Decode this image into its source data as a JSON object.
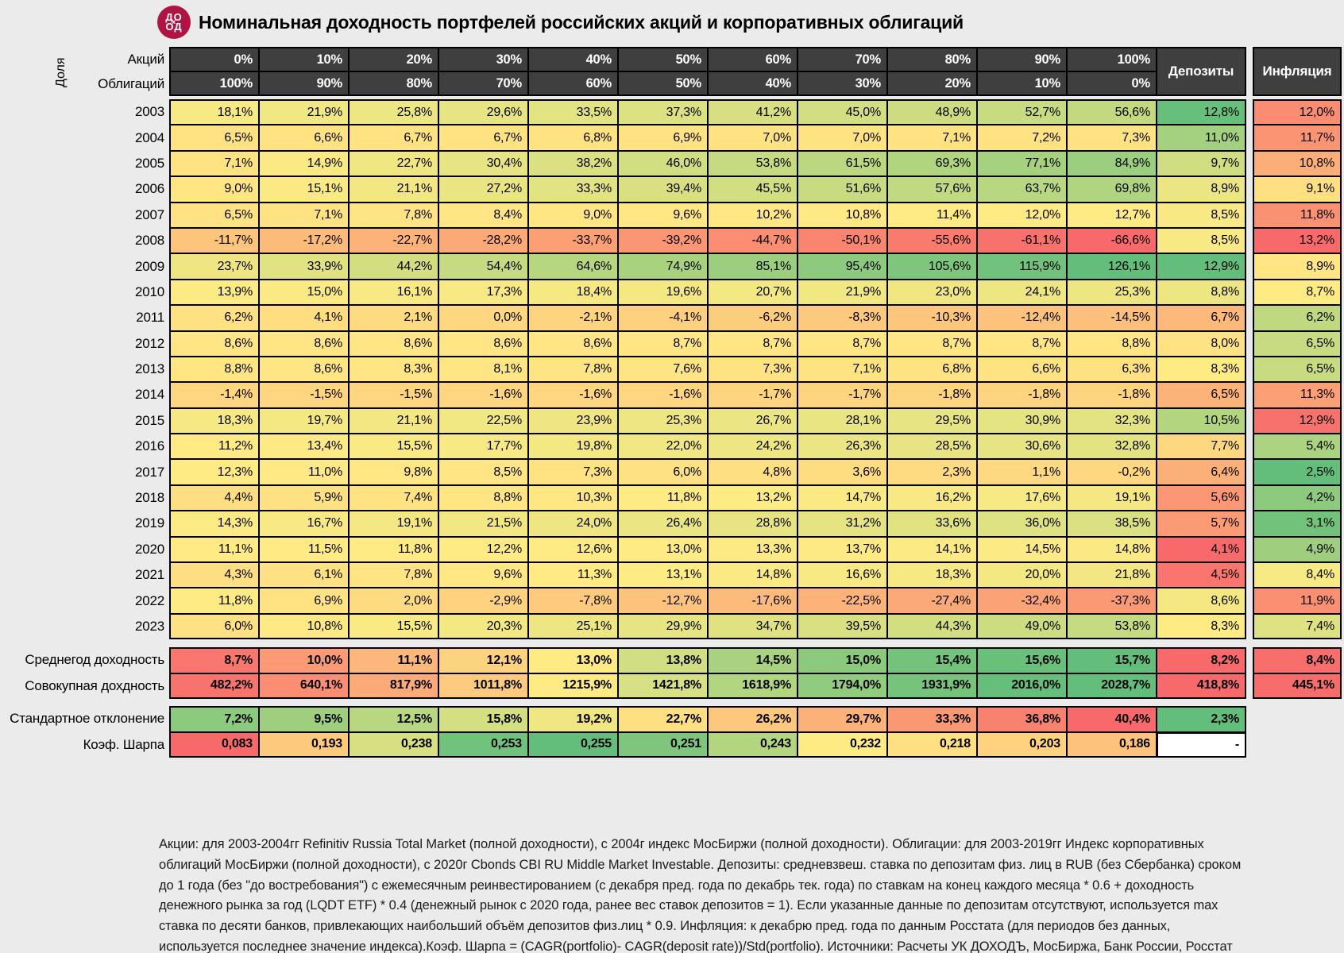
{
  "title": "Номинальная доходность портфелей российских акций и корпоративных облигаций",
  "logo": {
    "top": "ДО",
    "bottom": "ОД",
    "mid": "х"
  },
  "labels": {
    "share": "Доля",
    "stocks": "Акций",
    "bonds": "Облигаций",
    "deposits": "Депозиты",
    "inflation": "Инфляция"
  },
  "colors": {
    "scale_min_red": "#F8696B",
    "scale_mid_yellow": "#FFEB84",
    "scale_max_green": "#63BE7B",
    "header_bg": "#3F3F3F",
    "logo_bg": "#B01442",
    "page_bg": "#EBEBEB"
  },
  "chart_data": {
    "type": "heatmap",
    "title": "Номинальная доходность портфелей российских акций и корпоративных облигаций",
    "stock_weights": [
      0,
      10,
      20,
      30,
      40,
      50,
      60,
      70,
      80,
      90,
      100
    ],
    "bond_weights": [
      100,
      90,
      80,
      70,
      60,
      50,
      40,
      30,
      20,
      10,
      0
    ],
    "rows": [
      {
        "year": 2003,
        "values": [
          18.1,
          21.9,
          25.8,
          29.6,
          33.5,
          37.3,
          41.2,
          45.0,
          48.9,
          52.7,
          56.6
        ],
        "deposit": 12.8,
        "inflation": 12.0
      },
      {
        "year": 2004,
        "values": [
          6.5,
          6.6,
          6.7,
          6.7,
          6.8,
          6.9,
          7.0,
          7.0,
          7.1,
          7.2,
          7.3
        ],
        "deposit": 11.0,
        "inflation": 11.7
      },
      {
        "year": 2005,
        "values": [
          7.1,
          14.9,
          22.7,
          30.4,
          38.2,
          46.0,
          53.8,
          61.5,
          69.3,
          77.1,
          84.9
        ],
        "deposit": 9.7,
        "inflation": 10.8
      },
      {
        "year": 2006,
        "values": [
          9.0,
          15.1,
          21.1,
          27.2,
          33.3,
          39.4,
          45.5,
          51.6,
          57.6,
          63.7,
          69.8
        ],
        "deposit": 8.9,
        "inflation": 9.1
      },
      {
        "year": 2007,
        "values": [
          6.5,
          7.1,
          7.8,
          8.4,
          9.0,
          9.6,
          10.2,
          10.8,
          11.4,
          12.0,
          12.7
        ],
        "deposit": 8.5,
        "inflation": 11.8
      },
      {
        "year": 2008,
        "values": [
          -11.7,
          -17.2,
          -22.7,
          -28.2,
          -33.7,
          -39.2,
          -44.7,
          -50.1,
          -55.6,
          -61.1,
          -66.6
        ],
        "deposit": 8.5,
        "inflation": 13.2
      },
      {
        "year": 2009,
        "values": [
          23.7,
          33.9,
          44.2,
          54.4,
          64.6,
          74.9,
          85.1,
          95.4,
          105.6,
          115.9,
          126.1
        ],
        "deposit": 12.9,
        "inflation": 8.9
      },
      {
        "year": 2010,
        "values": [
          13.9,
          15.0,
          16.1,
          17.3,
          18.4,
          19.6,
          20.7,
          21.9,
          23.0,
          24.1,
          25.3
        ],
        "deposit": 8.8,
        "inflation": 8.7
      },
      {
        "year": 2011,
        "values": [
          6.2,
          4.1,
          2.1,
          0.0,
          -2.1,
          -4.1,
          -6.2,
          -8.3,
          -10.3,
          -12.4,
          -14.5
        ],
        "deposit": 6.7,
        "inflation": 6.2
      },
      {
        "year": 2012,
        "values": [
          8.6,
          8.6,
          8.6,
          8.6,
          8.6,
          8.7,
          8.7,
          8.7,
          8.7,
          8.7,
          8.8
        ],
        "deposit": 8.0,
        "inflation": 6.5
      },
      {
        "year": 2013,
        "values": [
          8.8,
          8.6,
          8.3,
          8.1,
          7.8,
          7.6,
          7.3,
          7.1,
          6.8,
          6.6,
          6.3
        ],
        "deposit": 8.3,
        "inflation": 6.5
      },
      {
        "year": 2014,
        "values": [
          -1.4,
          -1.5,
          -1.5,
          -1.6,
          -1.6,
          -1.6,
          -1.7,
          -1.7,
          -1.8,
          -1.8,
          -1.8
        ],
        "deposit": 6.5,
        "inflation": 11.3
      },
      {
        "year": 2015,
        "values": [
          18.3,
          19.7,
          21.1,
          22.5,
          23.9,
          25.3,
          26.7,
          28.1,
          29.5,
          30.9,
          32.3
        ],
        "deposit": 10.5,
        "inflation": 12.9
      },
      {
        "year": 2016,
        "values": [
          11.2,
          13.4,
          15.5,
          17.7,
          19.8,
          22.0,
          24.2,
          26.3,
          28.5,
          30.6,
          32.8
        ],
        "deposit": 7.7,
        "inflation": 5.4
      },
      {
        "year": 2017,
        "values": [
          12.3,
          11.0,
          9.8,
          8.5,
          7.3,
          6.0,
          4.8,
          3.6,
          2.3,
          1.1,
          -0.2
        ],
        "deposit": 6.4,
        "inflation": 2.5
      },
      {
        "year": 2018,
        "values": [
          4.4,
          5.9,
          7.4,
          8.8,
          10.3,
          11.8,
          13.2,
          14.7,
          16.2,
          17.6,
          19.1
        ],
        "deposit": 5.6,
        "inflation": 4.2
      },
      {
        "year": 2019,
        "values": [
          14.3,
          16.7,
          19.1,
          21.5,
          24.0,
          26.4,
          28.8,
          31.2,
          33.6,
          36.0,
          38.5
        ],
        "deposit": 5.7,
        "inflation": 3.1
      },
      {
        "year": 2020,
        "values": [
          11.1,
          11.5,
          11.8,
          12.2,
          12.6,
          13.0,
          13.3,
          13.7,
          14.1,
          14.5,
          14.8
        ],
        "deposit": 4.1,
        "inflation": 4.9
      },
      {
        "year": 2021,
        "values": [
          4.3,
          6.1,
          7.8,
          9.6,
          11.3,
          13.1,
          14.8,
          16.6,
          18.3,
          20.0,
          21.8
        ],
        "deposit": 4.5,
        "inflation": 8.4
      },
      {
        "year": 2022,
        "values": [
          11.8,
          6.9,
          2.0,
          -2.9,
          -7.8,
          -12.7,
          -17.6,
          -22.5,
          -27.4,
          -32.4,
          -37.3
        ],
        "deposit": 8.6,
        "inflation": 11.9
      },
      {
        "year": 2023,
        "values": [
          6.0,
          10.8,
          15.5,
          20.3,
          25.1,
          29.9,
          34.7,
          39.5,
          44.3,
          49.0,
          53.8
        ],
        "deposit": 8.3,
        "inflation": 7.4
      }
    ],
    "summary": [
      {
        "key": "avg-return",
        "label": "Среднегод доходность",
        "values": [
          8.7,
          10.0,
          11.1,
          12.1,
          13.0,
          13.8,
          14.5,
          15.0,
          15.4,
          15.6,
          15.7
        ],
        "deposit": 8.2,
        "inflation": 8.4,
        "reversed": false,
        "format": "pct1"
      },
      {
        "key": "total-return",
        "label": "Совокупная дохдность",
        "values": [
          482.2,
          640.1,
          817.9,
          1011.8,
          1215.9,
          1421.8,
          1618.9,
          1794.0,
          1931.9,
          2016.0,
          2028.7
        ],
        "deposit": 418.8,
        "inflation": 445.1,
        "reversed": false,
        "format": "pct1"
      },
      {
        "key": "std-dev",
        "label": "Стандартное отклонение",
        "values": [
          7.2,
          9.5,
          12.5,
          15.8,
          19.2,
          22.7,
          26.2,
          29.7,
          33.3,
          36.8,
          40.4
        ],
        "deposit": 2.3,
        "inflation": null,
        "reversed": true,
        "format": "pct1"
      },
      {
        "key": "sharpe",
        "label": "Коэф. Шарпа",
        "values": [
          0.083,
          0.193,
          0.238,
          0.253,
          0.255,
          0.251,
          0.243,
          0.232,
          0.218,
          0.203,
          0.186
        ],
        "deposit": null,
        "deposit_placeholder": "-",
        "inflation": null,
        "reversed": false,
        "format": "num3"
      }
    ]
  },
  "footnote_lines": [
    "Акции: для 2003-2004гг Refinitiv Russia Total Market (полной доходности), с 2004г индекс МосБиржи (полной доходности). Облигации: для 2003-2019гг Индекс корпоративных",
    "облигаций МосБиржи (полной доходности), с 2020г Cbonds CBI RU Middle Market Investable. Депозиты: средневзвеш. ставка по депозитам физ. лиц в RUB (без Сбербанка) сроком",
    "до 1 года (без \"до востребования\") с ежемесячным реинвестированием (с декабря пред. года по декабрь тек. года) по ставкам на конец каждого месяца * 0.6 + доходность",
    "денежного рынка за год (LQDT ETF) * 0.4 (денежный рынок с 2020 года, ранее вес ставок депозитов = 1). Если указанные данные по депозитам отсутствуют, используется max",
    "ставка по десяти банков, привлекающих наибольший объём депозитов физ.лиц * 0.9. Инфляция: к декабрю пред. года по данным Росстата (для периодов без данных,",
    "используется последнее значение индекса).Коэф. Шарпа = (CAGR(portfolio)- CAGR(deposit rate))/Std(portfolio). Источники: Расчеты УК ДОХОДЪ, МосБиржа, Банк России, Росстат"
  ]
}
